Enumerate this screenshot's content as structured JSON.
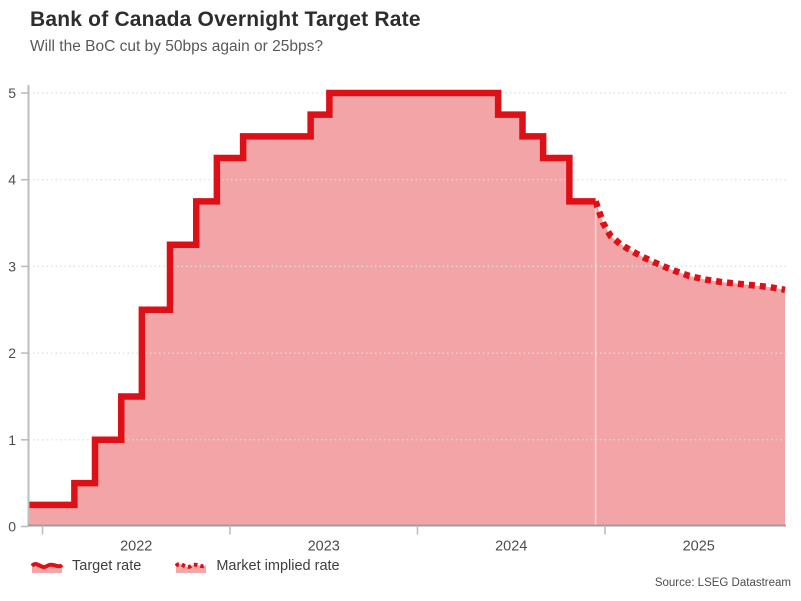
{
  "header": {
    "title": "Bank of Canada Overnight Target Rate",
    "subtitle": "Will the BoC cut by 50bps again or 25bps?"
  },
  "legend": [
    {
      "label": "Target rate",
      "style": "solid"
    },
    {
      "label": "Market implied rate",
      "style": "dotted"
    }
  ],
  "footer": {
    "source": "Source: LSEG Datastream"
  },
  "colors": {
    "line_red": "#dc1016",
    "fill_pink": "rgba(220,16,22,0.38)",
    "legend_fill_pink": "#f2a6a8",
    "grid": "#dcdcdc",
    "spine": "#bdbdbd",
    "x_axis": "#9c9c9c",
    "tick_text": "#4d4d4d",
    "forecast_divider": "rgba(255,255,255,0.55)"
  },
  "chart_data": {
    "type": "area",
    "title": "Bank of Canada Overnight Target Rate",
    "ylabel": "",
    "xlabel": "",
    "ylim": [
      0,
      5.1
    ],
    "xlim": [
      2021.92,
      2025.96
    ],
    "grid": "horizontal dotted",
    "legend_position": "bottom-left",
    "y_ticks": [
      0,
      1,
      2,
      3,
      4,
      5
    ],
    "x_year_ticks": [
      2022,
      2023,
      2024,
      2025
    ],
    "x_year_labels": [
      "2022",
      "2023",
      "2024",
      "2025"
    ],
    "x_year_label_positions": [
      2022.5,
      2023.5,
      2024.5,
      2025.5
    ],
    "series": [
      {
        "name": "Target rate",
        "style": "step-solid",
        "points": [
          [
            2021.92,
            0.25
          ],
          [
            2022.17,
            0.5
          ],
          [
            2022.28,
            1.0
          ],
          [
            2022.42,
            1.5
          ],
          [
            2022.53,
            2.5
          ],
          [
            2022.68,
            3.25
          ],
          [
            2022.82,
            3.75
          ],
          [
            2022.93,
            4.25
          ],
          [
            2023.07,
            4.5
          ],
          [
            2023.43,
            4.75
          ],
          [
            2023.53,
            5.0
          ],
          [
            2024.43,
            4.75
          ],
          [
            2024.56,
            4.5
          ],
          [
            2024.67,
            4.25
          ],
          [
            2024.81,
            3.75
          ],
          [
            2024.95,
            3.75
          ]
        ]
      },
      {
        "name": "Market implied rate",
        "style": "dotted-line",
        "points": [
          [
            2024.95,
            3.75
          ],
          [
            2024.99,
            3.5
          ],
          [
            2025.03,
            3.35
          ],
          [
            2025.08,
            3.26
          ],
          [
            2025.14,
            3.18
          ],
          [
            2025.21,
            3.1
          ],
          [
            2025.29,
            3.02
          ],
          [
            2025.37,
            2.95
          ],
          [
            2025.45,
            2.89
          ],
          [
            2025.53,
            2.85
          ],
          [
            2025.62,
            2.82
          ],
          [
            2025.71,
            2.8
          ],
          [
            2025.8,
            2.78
          ],
          [
            2025.88,
            2.76
          ],
          [
            2025.96,
            2.73
          ]
        ]
      }
    ]
  }
}
